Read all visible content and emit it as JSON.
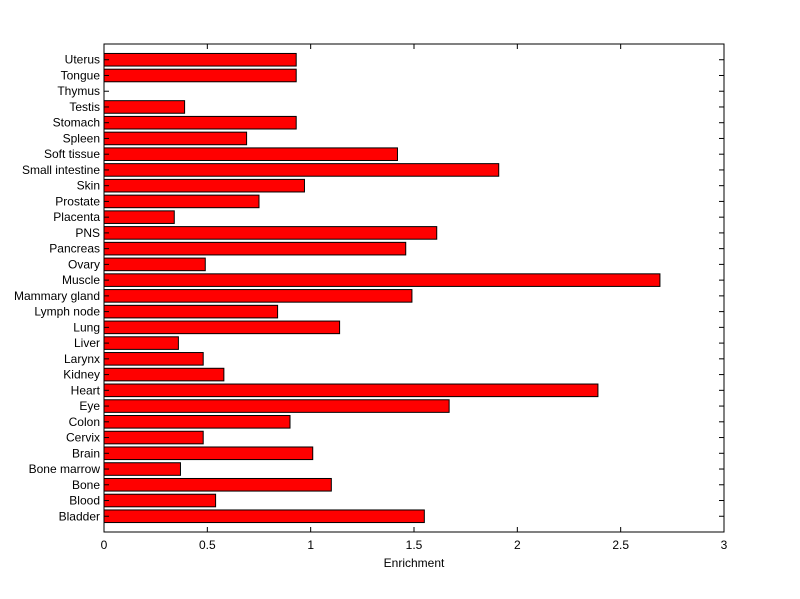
{
  "chart_data": {
    "type": "bar",
    "orientation": "horizontal",
    "title": "",
    "xlabel": "Enrichment",
    "ylabel": "",
    "xlim": [
      0,
      3
    ],
    "xticks": [
      "0",
      "0.5",
      "1",
      "1.5",
      "2",
      "2.5",
      "3"
    ],
    "grid": false,
    "bar_color": "#ff0000",
    "edge_color": "#000000",
    "categories": [
      "Uterus",
      "Tongue",
      "Thymus",
      "Testis",
      "Stomach",
      "Spleen",
      "Soft tissue",
      "Small intestine",
      "Skin",
      "Prostate",
      "Placenta",
      "PNS",
      "Pancreas",
      "Ovary",
      "Muscle",
      "Mammary gland",
      "Lymph node",
      "Lung",
      "Liver",
      "Larynx",
      "Kidney",
      "Heart",
      "Eye",
      "Colon",
      "Cervix",
      "Brain",
      "Bone marrow",
      "Bone",
      "Blood",
      "Bladder"
    ],
    "values": [
      0.93,
      0.93,
      0,
      0.39,
      0.93,
      0.69,
      1.42,
      1.91,
      0.97,
      0.75,
      0.34,
      1.61,
      1.46,
      0.49,
      2.69,
      1.49,
      0.84,
      1.14,
      0.36,
      0.48,
      0.58,
      2.39,
      1.67,
      0.9,
      0.48,
      1.01,
      0.37,
      1.1,
      0.54,
      1.55
    ]
  }
}
